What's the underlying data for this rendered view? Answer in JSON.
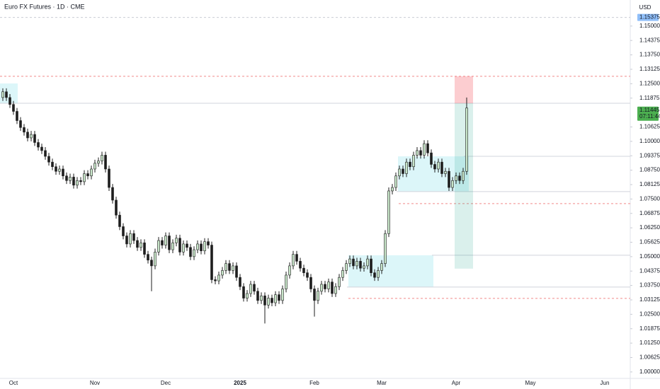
{
  "chart_data": {
    "type": "candlestick",
    "title": "Euro FX Futures · 1D · CME",
    "currency": "USD",
    "categories": [
      null,
      null,
      null,
      "Oct",
      null,
      null,
      null,
      null,
      null,
      null,
      null,
      null,
      null,
      null,
      null,
      null,
      null,
      null,
      null,
      null,
      null,
      null,
      null,
      null,
      null,
      null,
      "Nov",
      null,
      null,
      null,
      null,
      null,
      null,
      null,
      null,
      null,
      null,
      null,
      null,
      null,
      null,
      null,
      null,
      null,
      null,
      null,
      "Dec",
      null,
      null,
      null,
      null,
      null,
      null,
      null,
      null,
      null,
      null,
      null,
      null,
      null,
      null,
      null,
      null,
      null,
      null,
      null,
      null,
      "2025",
      null,
      null,
      null,
      null,
      null,
      null,
      null,
      null,
      null,
      null,
      null,
      null,
      null,
      null,
      null,
      null,
      null,
      null,
      null,
      null,
      "Feb",
      null,
      null,
      null,
      null,
      null,
      null,
      null,
      null,
      null,
      null,
      null,
      null,
      null,
      null,
      null,
      null,
      null,
      null,
      "Mar",
      null,
      null,
      null,
      null,
      null,
      null,
      null,
      null,
      null,
      null,
      null,
      null,
      null,
      null,
      null,
      null,
      null,
      null,
      null,
      null,
      "Apr",
      null,
      null,
      null,
      null,
      null,
      null,
      null,
      null,
      null,
      null,
      null,
      null,
      null,
      null,
      null,
      null,
      null,
      null,
      null,
      null,
      "May",
      null,
      null,
      null,
      null,
      null,
      null,
      null,
      null,
      null,
      null,
      null,
      null,
      null,
      null,
      null,
      null,
      null,
      null,
      null,
      null,
      "Jun",
      null
    ],
    "open": [
      1.119,
      1.1215,
      1.119,
      1.116,
      1.113,
      1.109,
      1.106,
      1.104,
      1.1015,
      1.103,
      1.0995,
      1.0975,
      1.096,
      1.0935,
      1.091,
      1.089,
      1.087,
      1.088,
      1.085,
      1.083,
      1.0845,
      1.081,
      1.083,
      1.0825,
      1.086,
      1.085,
      1.088,
      1.0905,
      1.0915,
      1.094,
      1.088,
      1.08,
      1.0745,
      1.068,
      1.063,
      1.059,
      1.0555,
      1.06,
      1.057,
      1.054,
      1.056,
      1.051,
      1.0485,
      1.046,
      1.052,
      1.057,
      1.055,
      1.059,
      1.053,
      1.056,
      1.058,
      1.052,
      1.0555,
      1.054,
      1.05,
      1.053,
      1.0555,
      1.0525,
      1.0565,
      1.055,
      1.04,
      1.0395,
      1.042,
      1.044,
      1.047,
      1.044,
      1.046,
      1.041,
      1.037,
      1.032,
      1.034,
      1.038,
      1.035,
      1.031,
      1.033,
      1.029,
      1.032,
      1.03,
      1.0335,
      1.031,
      1.036,
      1.042,
      1.046,
      1.051,
      1.048,
      1.045,
      1.043,
      1.041,
      1.036,
      1.031,
      1.035,
      1.038,
      1.036,
      1.039,
      1.034,
      1.037,
      1.041,
      1.044,
      1.047,
      1.049,
      1.046,
      1.048,
      1.045,
      1.046,
      1.049,
      1.043,
      1.041,
      1.044,
      1.047,
      1.06,
      1.0785,
      1.08,
      1.085,
      1.088,
      1.086,
      1.091,
      1.089,
      1.094,
      1.096,
      1.094,
      1.099,
      1.095,
      1.09,
      1.088,
      1.091,
      1.086,
      1.087,
      1.08,
      1.083,
      1.085,
      1.083,
      1.087,
      null,
      null,
      null,
      null,
      null,
      null,
      null,
      null,
      null,
      null,
      null,
      null,
      null,
      null,
      null,
      null,
      null,
      null,
      null,
      null,
      null,
      null,
      null,
      null,
      null,
      null,
      null,
      null,
      null,
      null,
      null,
      null,
      null,
      null,
      null,
      null,
      null,
      null,
      null,
      null
    ],
    "high": [
      1.123,
      1.123,
      1.1205,
      1.1175,
      1.1145,
      1.1105,
      1.1075,
      1.1055,
      1.1045,
      1.1045,
      1.101,
      1.099,
      1.0975,
      1.095,
      1.0925,
      1.0905,
      1.0895,
      1.0895,
      1.0865,
      1.086,
      1.086,
      1.0845,
      1.0845,
      1.0875,
      1.0875,
      1.0895,
      1.092,
      1.093,
      1.0955,
      1.0955,
      1.0895,
      1.0815,
      1.076,
      1.0695,
      1.0645,
      1.0605,
      1.0615,
      1.0615,
      1.0585,
      1.0575,
      1.0575,
      1.0525,
      1.05,
      1.0535,
      1.0585,
      1.0585,
      1.0605,
      1.0605,
      1.0575,
      1.0595,
      1.0595,
      1.057,
      1.057,
      1.0555,
      1.0545,
      1.057,
      1.057,
      1.058,
      1.058,
      1.0565,
      1.0415,
      1.0435,
      1.0455,
      1.0485,
      1.0485,
      1.0475,
      1.0475,
      1.0425,
      1.0385,
      1.0355,
      1.0395,
      1.0395,
      1.0365,
      1.0345,
      1.0345,
      1.0335,
      1.0335,
      1.035,
      1.035,
      1.0375,
      1.0435,
      1.0475,
      1.0525,
      1.0525,
      1.0495,
      1.0465,
      1.0445,
      1.0425,
      1.0375,
      1.0365,
      1.0395,
      1.0395,
      1.0405,
      1.0405,
      1.0385,
      1.0425,
      1.0455,
      1.0485,
      1.0505,
      1.0505,
      1.0495,
      1.0495,
      1.0475,
      1.0505,
      1.0505,
      1.0445,
      1.0455,
      1.0485,
      1.0615,
      1.08,
      1.0815,
      1.0865,
      1.0895,
      1.0895,
      1.0925,
      1.0925,
      1.0955,
      1.0975,
      1.0975,
      1.1005,
      1.1005,
      1.0965,
      1.0915,
      1.0925,
      1.0925,
      1.0885,
      1.0885,
      1.0845,
      1.0865,
      1.0865,
      1.0885,
      1.119,
      null,
      null,
      null,
      null,
      null,
      null,
      null,
      null,
      null,
      null,
      null,
      null,
      null,
      null,
      null,
      null,
      null,
      null,
      null,
      null,
      null,
      null,
      null,
      null,
      null,
      null,
      null,
      null,
      null,
      null,
      null,
      null,
      null,
      null,
      null,
      null,
      null,
      null,
      null,
      null
    ],
    "low": [
      1.1175,
      1.1175,
      1.1145,
      1.1115,
      1.1075,
      1.1045,
      1.1025,
      1.1,
      1.1,
      1.098,
      1.096,
      1.0945,
      1.092,
      1.0895,
      1.0875,
      1.0855,
      1.0855,
      1.0835,
      1.0815,
      1.0815,
      1.0795,
      1.0795,
      1.081,
      1.081,
      1.0835,
      1.0835,
      1.0865,
      1.089,
      1.09,
      1.0865,
      1.0785,
      1.073,
      1.0665,
      1.0615,
      1.0575,
      1.054,
      1.054,
      1.0555,
      1.0525,
      1.0525,
      1.0495,
      1.047,
      1.035,
      1.0445,
      1.0505,
      1.0535,
      1.0535,
      1.0515,
      1.0515,
      1.0545,
      1.0505,
      1.0505,
      1.0525,
      1.0485,
      1.0485,
      1.0515,
      1.051,
      1.051,
      1.0535,
      1.0385,
      1.038,
      1.038,
      1.0405,
      1.0425,
      1.0425,
      1.0425,
      1.0395,
      1.0355,
      1.0305,
      1.0305,
      1.0325,
      1.0335,
      1.0295,
      1.0295,
      1.021,
      1.0275,
      1.0285,
      1.0285,
      1.0295,
      1.0295,
      1.0345,
      1.0405,
      1.0445,
      1.0465,
      1.0435,
      1.0415,
      1.0395,
      1.0345,
      1.024,
      1.0295,
      1.0335,
      1.0345,
      1.0345,
      1.0325,
      1.0325,
      1.0355,
      1.0395,
      1.0425,
      1.0455,
      1.0445,
      1.0445,
      1.0435,
      1.0435,
      1.0445,
      1.0415,
      1.0395,
      1.0395,
      1.0425,
      1.0455,
      1.0585,
      1.077,
      1.0785,
      1.0835,
      1.0845,
      1.0845,
      1.0875,
      1.0875,
      1.0925,
      1.0925,
      1.0925,
      1.0935,
      1.0885,
      1.0865,
      1.0865,
      1.0845,
      1.0845,
      1.0785,
      1.0785,
      1.0815,
      1.0815,
      1.0815,
      1.0855,
      null,
      null,
      null,
      null,
      null,
      null,
      null,
      null,
      null,
      null,
      null,
      null,
      null,
      null,
      null,
      null,
      null,
      null,
      null,
      null,
      null,
      null,
      null,
      null,
      null,
      null,
      null,
      null,
      null,
      null,
      null,
      null,
      null,
      null,
      null,
      null,
      null,
      null,
      null,
      null
    ],
    "close": [
      1.1215,
      1.119,
      1.116,
      1.113,
      1.109,
      1.106,
      1.104,
      1.1015,
      1.103,
      1.0995,
      1.0975,
      1.096,
      1.0935,
      1.091,
      1.089,
      1.087,
      1.088,
      1.085,
      1.083,
      1.0845,
      1.081,
      1.083,
      1.0825,
      1.086,
      1.085,
      1.088,
      1.0905,
      1.0915,
      1.094,
      1.088,
      1.08,
      1.0745,
      1.068,
      1.063,
      1.059,
      1.0555,
      1.06,
      1.057,
      1.054,
      1.056,
      1.051,
      1.0485,
      1.046,
      1.052,
      1.057,
      1.055,
      1.059,
      1.053,
      1.056,
      1.058,
      1.052,
      1.0555,
      1.054,
      1.05,
      1.053,
      1.0555,
      1.0525,
      1.0565,
      1.055,
      1.04,
      1.0395,
      1.042,
      1.044,
      1.047,
      1.044,
      1.046,
      1.041,
      1.037,
      1.032,
      1.034,
      1.038,
      1.035,
      1.031,
      1.033,
      1.029,
      1.032,
      1.03,
      1.0335,
      1.031,
      1.036,
      1.042,
      1.046,
      1.051,
      1.048,
      1.045,
      1.043,
      1.041,
      1.036,
      1.031,
      1.035,
      1.038,
      1.036,
      1.039,
      1.034,
      1.037,
      1.041,
      1.044,
      1.047,
      1.049,
      1.046,
      1.048,
      1.045,
      1.046,
      1.049,
      1.043,
      1.041,
      1.044,
      1.047,
      1.06,
      1.0785,
      1.08,
      1.085,
      1.088,
      1.086,
      1.091,
      1.089,
      1.094,
      1.096,
      1.094,
      1.099,
      1.095,
      1.09,
      1.088,
      1.091,
      1.086,
      1.087,
      1.08,
      1.083,
      1.085,
      1.083,
      1.087,
      1.11445,
      null,
      null,
      null,
      null,
      null,
      null,
      null,
      null,
      null,
      null,
      null,
      null,
      null,
      null,
      null,
      null,
      null,
      null,
      null,
      null,
      null,
      null,
      null,
      null,
      null,
      null,
      null,
      null,
      null,
      null,
      null,
      null,
      null,
      null,
      null,
      null,
      null,
      null,
      null,
      null
    ],
    "up_color": "#c8e6c9",
    "down_color": "#1e1e1e",
    "ylim": [
      0.9972,
      1.1613
    ],
    "yticks": [
      {
        "value": 1,
        "label": "1.00000"
      },
      {
        "value": 1.00625,
        "label": "1.00625"
      },
      {
        "value": 1.0125,
        "label": "1.01250"
      },
      {
        "value": 1.01875,
        "label": "1.01875"
      },
      {
        "value": 1.025,
        "label": "1.02500"
      },
      {
        "value": 1.03125,
        "label": "1.03125"
      },
      {
        "value": 1.0375,
        "label": "1.03750"
      },
      {
        "value": 1.04375,
        "label": "1.04375"
      },
      {
        "value": 1.05,
        "label": "1.05000"
      },
      {
        "value": 1.05625,
        "label": "1.05625"
      },
      {
        "value": 1.0625,
        "label": "1.06250"
      },
      {
        "value": 1.06875,
        "label": "1.06875"
      },
      {
        "value": 1.075,
        "label": "1.07500"
      },
      {
        "value": 1.08125,
        "label": "1.08125"
      },
      {
        "value": 1.0875,
        "label": "1.08750"
      },
      {
        "value": 1.09375,
        "label": "1.09375"
      },
      {
        "value": 1.1,
        "label": "1.10000"
      },
      {
        "value": 1.10625,
        "label": "1.10625"
      },
      {
        "value": 1.11875,
        "label": "1.11875"
      },
      {
        "value": 1.125,
        "label": "1.12500"
      },
      {
        "value": 1.13125,
        "label": "1.13125"
      },
      {
        "value": 1.1375,
        "label": "1.13750"
      },
      {
        "value": 1.14375,
        "label": "1.14375"
      },
      {
        "value": 1.15,
        "label": "1.15000"
      }
    ],
    "alert_level": 1.15375,
    "countdown": "07:11:44",
    "zones": [
      {
        "top": 1.1251,
        "bottom": 1.1165
      },
      {
        "top": 1.0935,
        "bottom": 1.0782
      },
      {
        "top": 1.0506,
        "bottom": 1.0368
      }
    ],
    "levels": [
      1.1165,
      1.0935,
      1.0782,
      1.0506,
      1.0368
    ],
    "dashed_levels": [
      1.1282,
      1.073,
      1.0319
    ],
    "position": {
      "stop": 1.1282,
      "entry": 1.1165,
      "target": 1.0448
    }
  }
}
